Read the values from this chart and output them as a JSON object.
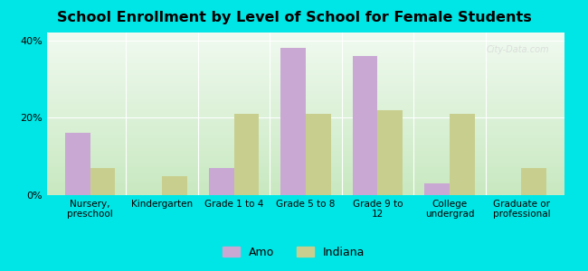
{
  "title": "School Enrollment by Level of School for Female Students",
  "categories": [
    "Nursery,\npreschool",
    "Kindergarten",
    "Grade 1 to 4",
    "Grade 5 to 8",
    "Grade 9 to\n12",
    "College\nundergrad",
    "Graduate or\nprofessional"
  ],
  "amo_values": [
    16.0,
    0.0,
    7.0,
    38.0,
    36.0,
    3.0,
    0.0
  ],
  "indiana_values": [
    7.0,
    5.0,
    21.0,
    21.0,
    22.0,
    21.0,
    7.0
  ],
  "amo_color": "#c9a8d4",
  "indiana_color": "#c8cf8e",
  "background_outer": "#00e5e5",
  "background_inner_top": "#e8f5e8",
  "background_inner_bottom": "#f5fff5",
  "ylim": [
    0,
    42
  ],
  "yticks": [
    0,
    20,
    40
  ],
  "ytick_labels": [
    "0%",
    "20%",
    "40%"
  ],
  "bar_width": 0.35,
  "legend_labels": [
    "Amo",
    "Indiana"
  ],
  "watermark": "City-Data.com"
}
